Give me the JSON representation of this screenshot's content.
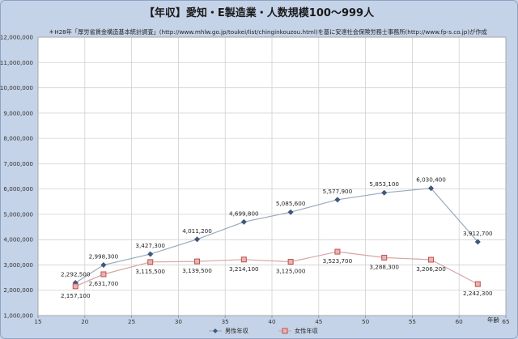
{
  "chart_data": {
    "type": "line",
    "title": "【年収】愛知・E製造業・人数規模100～999人",
    "note": "＊H28年「厚労省賃金構造基本統計調査」(http://www.mhlw.go.jp/toukei/list/chinginkouzou.html)を基に安達社会保険労務士事務所(http://www.fp-s.co.jp)が作成",
    "xlabel": "年齢",
    "xlim": [
      15,
      65
    ],
    "ylim": [
      1000000,
      12000000
    ],
    "x_ticks": [
      15,
      20,
      25,
      30,
      35,
      40,
      45,
      50,
      55,
      60,
      65
    ],
    "y_ticks": [
      1000000,
      2000000,
      3000000,
      4000000,
      5000000,
      6000000,
      7000000,
      8000000,
      9000000,
      10000000,
      11000000,
      12000000
    ],
    "y_tick_labels": [
      "1,000,000",
      "2,000,000",
      "3,000,000",
      "4,000,000",
      "5,000,000",
      "6,000,000",
      "7,000,000",
      "8,000,000",
      "9,000,000",
      "10,000,000",
      "11,000,000",
      "12,000,000"
    ],
    "x": [
      19,
      22,
      27,
      32,
      37,
      42,
      47,
      52,
      57,
      62
    ],
    "series": [
      {
        "name": "男性年収",
        "color": "#9aa8bf",
        "marker_color": "#3d5a80",
        "marker": "diamond",
        "values": [
          2292500,
          2998300,
          3427300,
          4011200,
          4699800,
          5085600,
          5577900,
          5853100,
          6030400,
          3912700
        ],
        "labels": [
          "2,292,500",
          "2,998,300",
          "3,427,300",
          "4,011,200",
          "4,699,800",
          "5,085,600",
          "5,577,900",
          "5,853,100",
          "6,030,400",
          "3,912,700"
        ]
      },
      {
        "name": "女性年収",
        "color": "#d7a5a5",
        "marker_color": "#c0504d",
        "marker": "square",
        "values": [
          2157100,
          2631700,
          3115500,
          3139500,
          3214100,
          3125000,
          3523700,
          3288300,
          3206200,
          2242300
        ],
        "labels": [
          "2,157,100",
          "2,631,700",
          "3,115,500",
          "3,139,500",
          "3,214,100",
          "3,125,000",
          "3,523,700",
          "3,288,300",
          "3,206,200",
          "2,242,300"
        ]
      }
    ],
    "grid": true,
    "legend_position": "bottom"
  }
}
